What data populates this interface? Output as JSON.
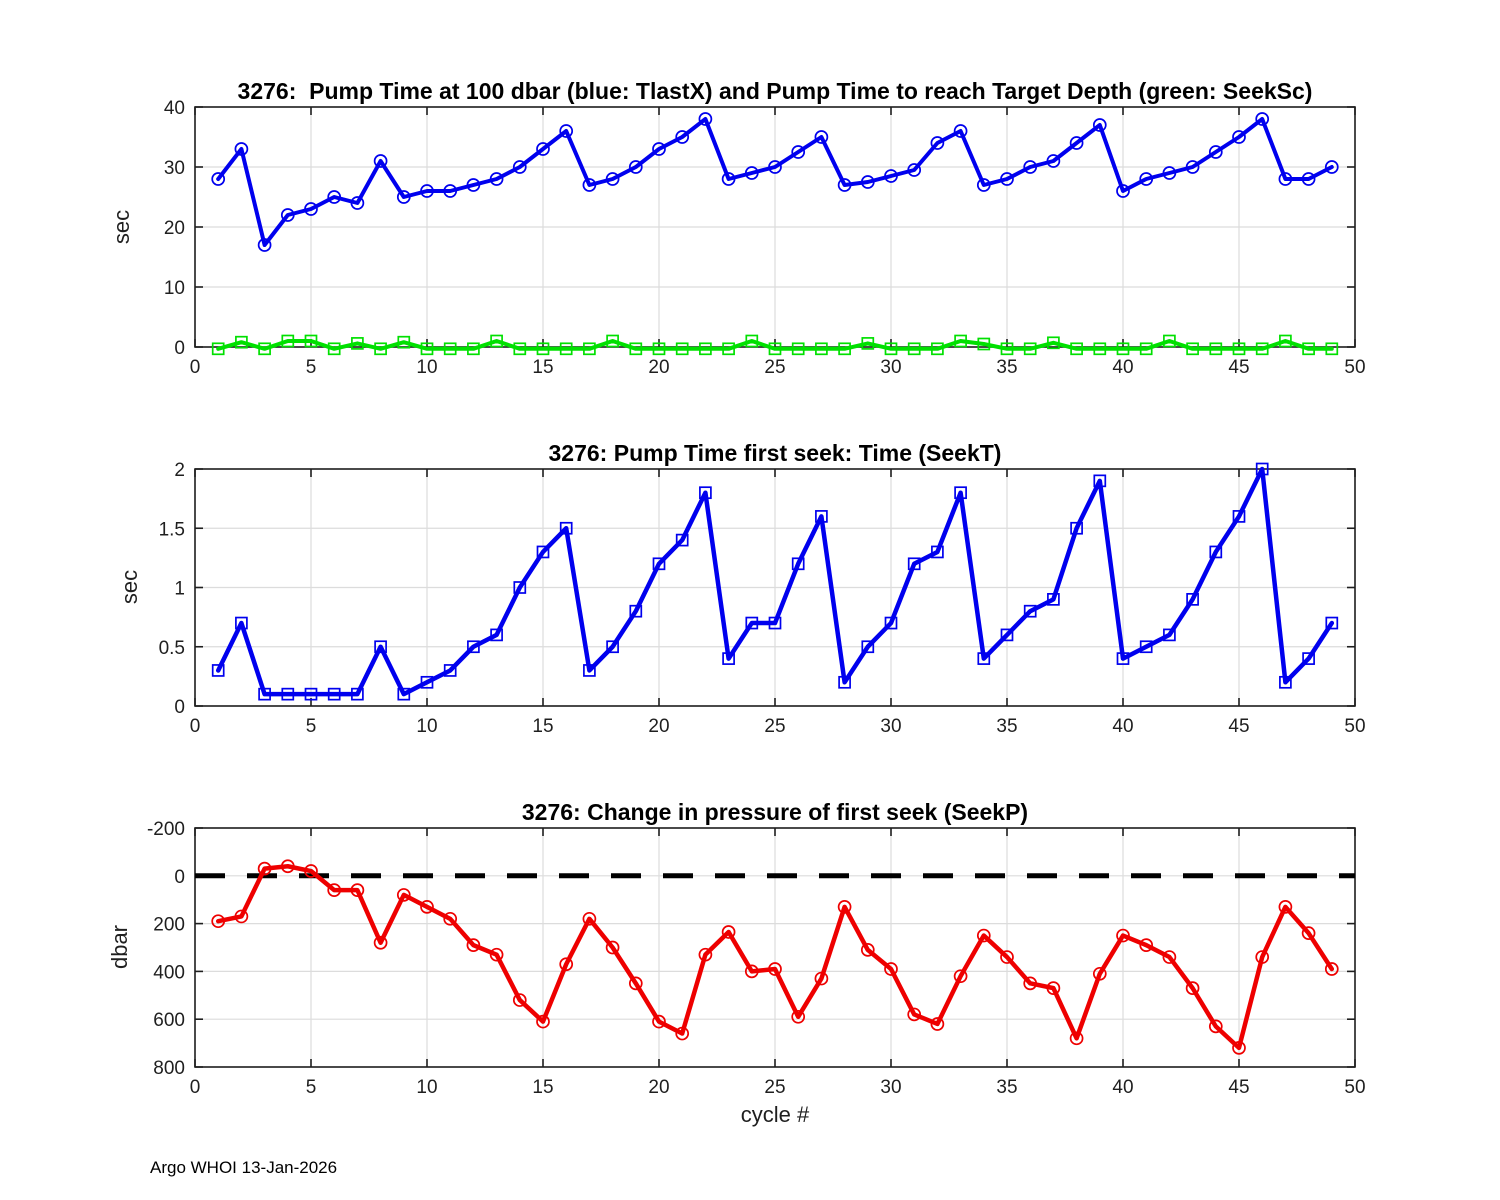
{
  "figure": {
    "footer": "Argo WHOI 13-Jan-2026"
  },
  "chart_data": [
    {
      "type": "line",
      "title": "3276:  Pump Time at 100 dbar (blue: TlastX) and Pump Time to reach Target Depth (green: SeekSc)",
      "xlabel": "",
      "ylabel": "sec",
      "xlim": [
        0,
        50
      ],
      "ylim": [
        0,
        40
      ],
      "xticks": [
        0,
        5,
        10,
        15,
        20,
        25,
        30,
        35,
        40,
        45,
        50
      ],
      "yticks": [
        0,
        10,
        20,
        30,
        40
      ],
      "grid": true,
      "legend_position": "none",
      "y_reversed": false,
      "zero_line": false,
      "series": [
        {
          "name": "TlastX",
          "color": "#0000ee",
          "marker": "circle",
          "line_width": 4,
          "x_start": 1,
          "x_step": 1,
          "values": [
            28,
            33,
            17,
            22,
            23,
            25,
            24,
            31,
            25,
            26,
            26,
            27,
            28,
            30,
            33,
            36,
            27,
            28,
            30,
            33,
            35,
            38,
            28,
            29,
            30,
            32.5,
            35,
            27,
            27.5,
            28.5,
            29.5,
            34,
            36,
            27,
            28,
            30,
            31,
            34,
            37,
            26,
            28,
            29,
            30,
            32.5,
            35,
            38,
            28,
            28,
            30
          ]
        },
        {
          "name": "SeekSc",
          "color": "#00e000",
          "marker": "square",
          "line_width": 4,
          "x_start": 1,
          "x_step": 1,
          "values": [
            -0.3,
            0.8,
            -0.3,
            1,
            1,
            -0.3,
            0.6,
            -0.3,
            0.8,
            -0.3,
            -0.3,
            -0.3,
            1,
            -0.3,
            -0.3,
            -0.3,
            -0.3,
            1,
            -0.3,
            -0.3,
            -0.3,
            -0.3,
            -0.3,
            1,
            -0.3,
            -0.3,
            -0.3,
            -0.3,
            0.6,
            -0.3,
            -0.3,
            -0.3,
            1,
            0.5,
            -0.3,
            -0.3,
            0.7,
            -0.3,
            -0.3,
            -0.3,
            -0.3,
            1,
            -0.3,
            -0.3,
            -0.3,
            -0.3,
            1,
            -0.3,
            -0.3
          ]
        }
      ]
    },
    {
      "type": "line",
      "title": "3276: Pump Time first seek: Time (SeekT)",
      "xlabel": "",
      "ylabel": "sec",
      "xlim": [
        0,
        50
      ],
      "ylim": [
        0,
        2
      ],
      "xticks": [
        0,
        5,
        10,
        15,
        20,
        25,
        30,
        35,
        40,
        45,
        50
      ],
      "yticks": [
        0,
        0.5,
        1,
        1.5,
        2
      ],
      "grid": true,
      "legend_position": "none",
      "y_reversed": false,
      "zero_line": false,
      "series": [
        {
          "name": "SeekT",
          "color": "#0000ee",
          "marker": "square",
          "line_width": 4.5,
          "x_start": 1,
          "x_step": 1,
          "values": [
            0.3,
            0.7,
            0.1,
            0.1,
            0.1,
            0.1,
            0.1,
            0.5,
            0.1,
            0.2,
            0.3,
            0.5,
            0.6,
            1.0,
            1.3,
            1.5,
            0.3,
            0.5,
            0.8,
            1.2,
            1.4,
            1.8,
            0.4,
            0.7,
            0.7,
            1.2,
            1.6,
            0.2,
            0.5,
            0.7,
            1.2,
            1.3,
            1.8,
            0.4,
            0.6,
            0.8,
            0.9,
            1.5,
            1.9,
            0.4,
            0.5,
            0.6,
            0.9,
            1.3,
            1.6,
            2.0,
            0.2,
            0.4,
            0.7
          ]
        }
      ]
    },
    {
      "type": "line",
      "title": "3276: Change in pressure of first seek (SeekP)",
      "xlabel": "cycle #",
      "ylabel": "dbar",
      "xlim": [
        0,
        50
      ],
      "ylim": [
        -200,
        800
      ],
      "xticks": [
        0,
        5,
        10,
        15,
        20,
        25,
        30,
        35,
        40,
        45,
        50
      ],
      "yticks": [
        -200,
        0,
        200,
        400,
        600,
        800
      ],
      "grid": true,
      "legend_position": "none",
      "y_reversed": true,
      "zero_line": true,
      "zero_line_color": "#000000",
      "series": [
        {
          "name": "SeekP",
          "color": "#ee0000",
          "marker": "circle",
          "line_width": 4.5,
          "x_start": 1,
          "x_step": 1,
          "values": [
            190,
            170,
            -30,
            -40,
            -20,
            60,
            60,
            280,
            80,
            130,
            180,
            290,
            330,
            520,
            610,
            370,
            180,
            300,
            450,
            610,
            660,
            330,
            235,
            400,
            390,
            590,
            430,
            130,
            310,
            390,
            580,
            620,
            420,
            250,
            340,
            450,
            470,
            680,
            410,
            250,
            290,
            340,
            470,
            630,
            720,
            340,
            130,
            240,
            390
          ]
        }
      ]
    }
  ]
}
